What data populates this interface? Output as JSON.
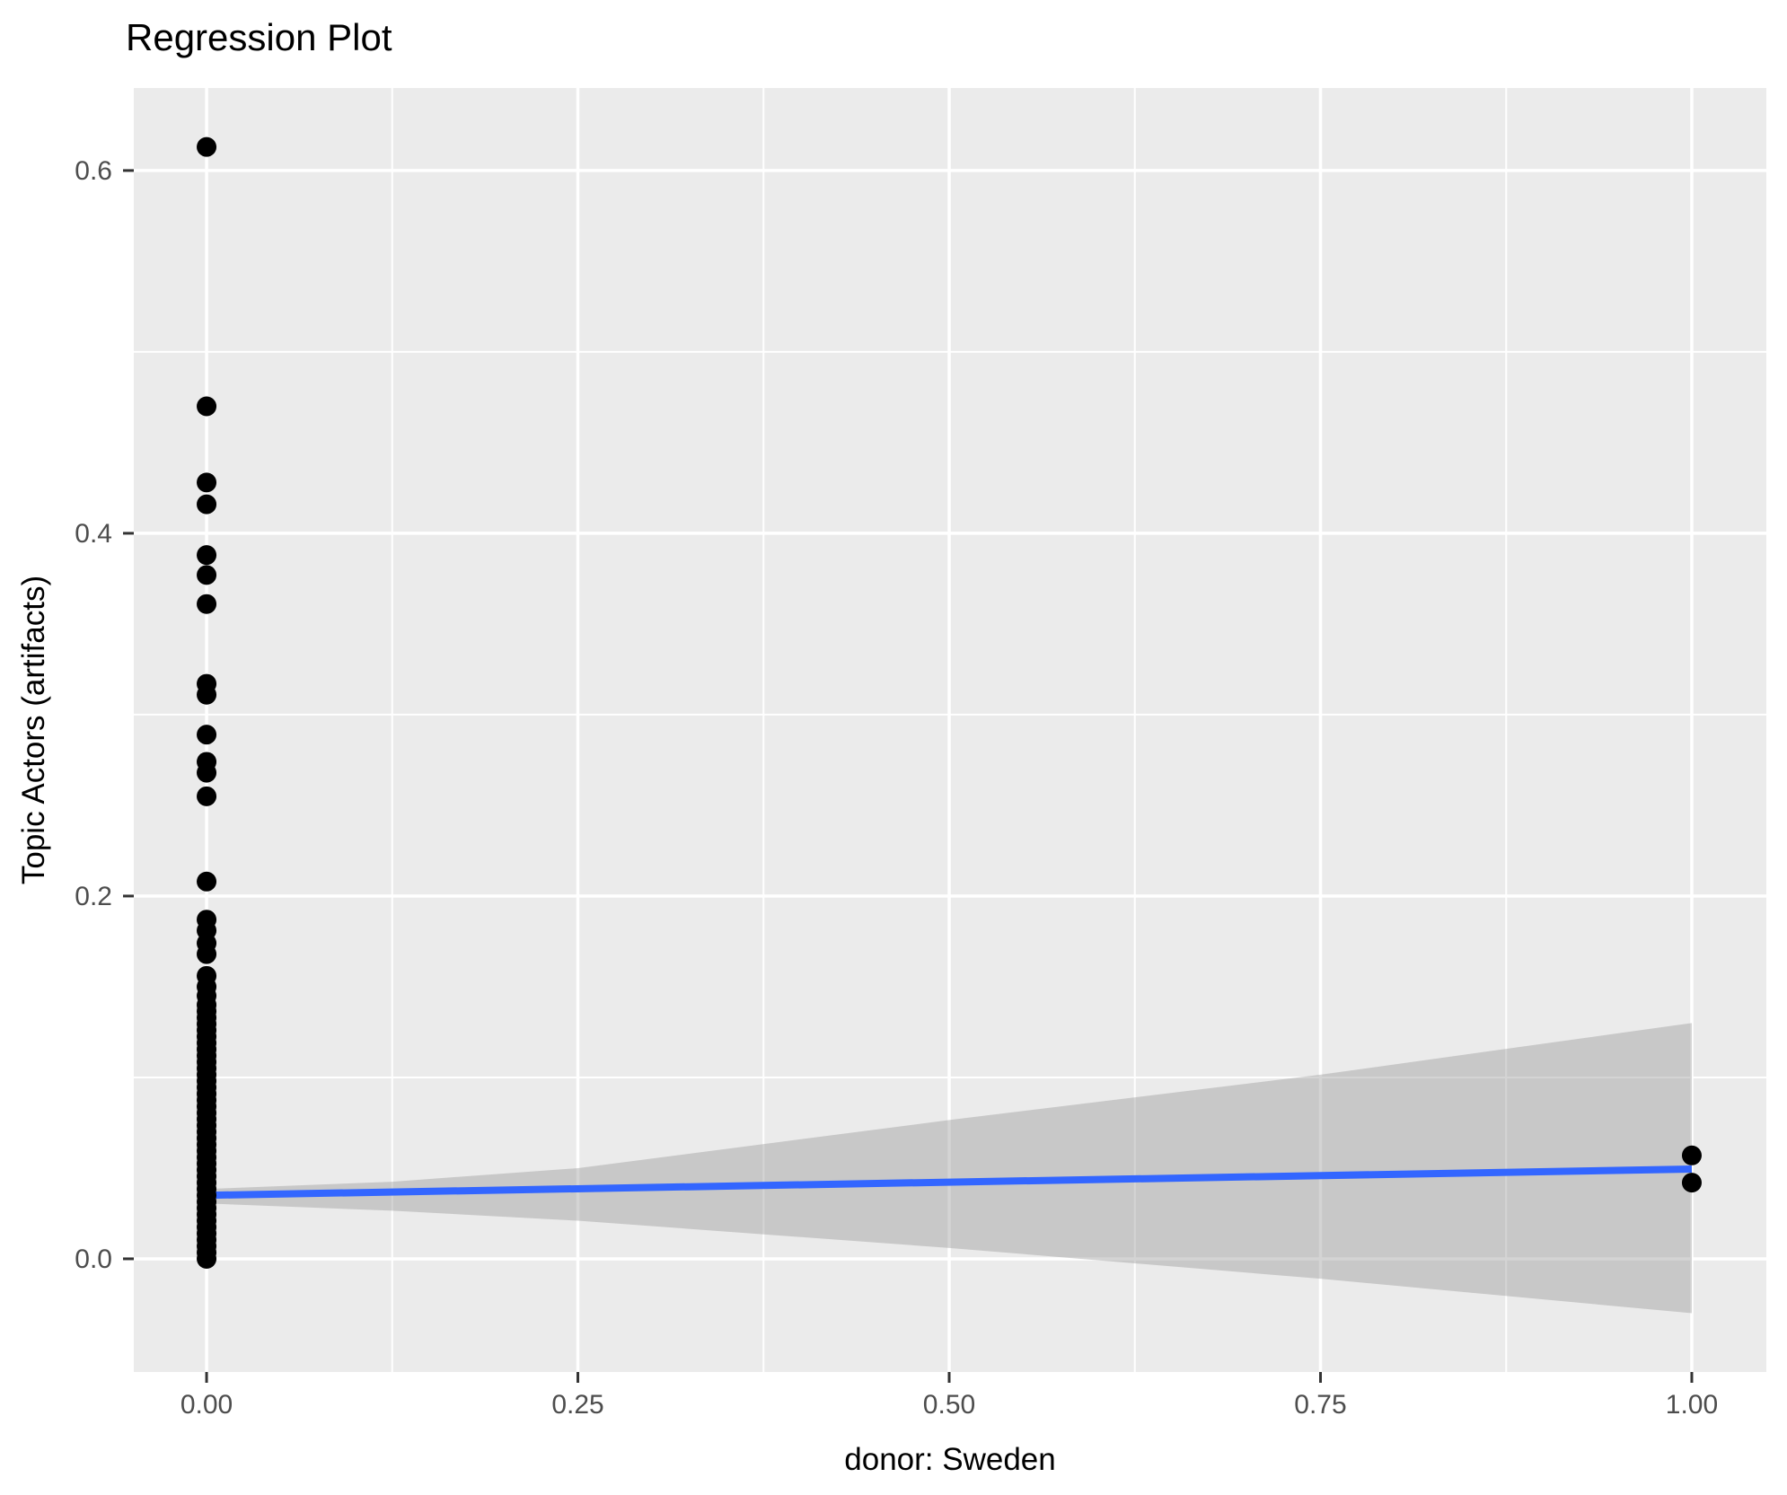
{
  "title": "Regression Plot",
  "x_axis_title": "donor: Sweden",
  "y_axis_title": "Topic Actors (artifacts)",
  "colors": {
    "background": "#FFFFFF",
    "panel_bg": "#EBEBEB",
    "grid": "#FFFFFF",
    "tick_mark": "#333333",
    "tick_label": "#4D4D4D",
    "point": "#000000",
    "regression_line": "#3366FF",
    "ribbon": "#999999",
    "title_text": "#000000"
  },
  "chart_data": {
    "type": "scatter",
    "title": "Regression Plot",
    "xlabel": "donor: Sweden",
    "ylabel": "Topic Actors (artifacts)",
    "xlim": [
      -0.049,
      1.0502
    ],
    "ylim": [
      -0.0624,
      0.6455
    ],
    "x_ticks": [
      0,
      0.25,
      0.5,
      0.75,
      1.0
    ],
    "x_tick_labels": [
      "0.00",
      "0.25",
      "0.50",
      "0.75",
      "1.00"
    ],
    "y_ticks": [
      0,
      0.2,
      0.4,
      0.6
    ],
    "y_tick_labels": [
      "0.0",
      "0.2",
      "0.4",
      "0.6"
    ],
    "x_minor_ticks": [
      0.125,
      0.375,
      0.625,
      0.875
    ],
    "y_minor_ticks": [
      0.1,
      0.3,
      0.5
    ],
    "grid": true,
    "legend": "none",
    "series": [
      {
        "name": "observations",
        "type": "scatter",
        "color": "#000000",
        "points": [
          [
            0,
            0.613
          ],
          [
            0,
            0.47
          ],
          [
            0,
            0.428
          ],
          [
            0,
            0.416
          ],
          [
            0,
            0.388
          ],
          [
            0,
            0.377
          ],
          [
            0,
            0.361
          ],
          [
            0,
            0.317
          ],
          [
            0,
            0.311
          ],
          [
            0,
            0.289
          ],
          [
            0,
            0.274
          ],
          [
            0,
            0.268
          ],
          [
            0,
            0.255
          ],
          [
            0,
            0.208
          ],
          [
            0,
            0.187
          ],
          [
            0,
            0.181
          ],
          [
            0,
            0.174
          ],
          [
            0,
            0.168
          ],
          [
            0,
            0.156
          ],
          [
            0,
            0.15
          ],
          [
            0,
            0.145
          ],
          [
            0,
            0.14
          ],
          [
            0,
            0.1365
          ],
          [
            0,
            0.133
          ],
          [
            0,
            0.1295
          ],
          [
            0,
            0.126
          ],
          [
            0,
            0.1225
          ],
          [
            0,
            0.119
          ],
          [
            0,
            0.1155
          ],
          [
            0,
            0.112
          ],
          [
            0,
            0.1085
          ],
          [
            0,
            0.105
          ],
          [
            0,
            0.1015
          ],
          [
            0,
            0.098
          ],
          [
            0,
            0.0945
          ],
          [
            0,
            0.091
          ],
          [
            0,
            0.0875
          ],
          [
            0,
            0.084
          ],
          [
            0,
            0.0805
          ],
          [
            0,
            0.077
          ],
          [
            0,
            0.0735
          ],
          [
            0,
            0.07
          ],
          [
            0,
            0.0665
          ],
          [
            0,
            0.063
          ],
          [
            0,
            0.0595
          ],
          [
            0,
            0.056
          ],
          [
            0,
            0.0525
          ],
          [
            0,
            0.049
          ],
          [
            0,
            0.0455
          ],
          [
            0,
            0.042
          ],
          [
            0,
            0.0385
          ],
          [
            0,
            0.035
          ],
          [
            0,
            0.0315
          ],
          [
            0,
            0.028
          ],
          [
            0,
            0.0245
          ],
          [
            0,
            0.021
          ],
          [
            0,
            0.0175
          ],
          [
            0,
            0.014
          ],
          [
            0,
            0.0105
          ],
          [
            0,
            0.007
          ],
          [
            0,
            0.0035
          ],
          [
            0,
            0.0
          ],
          [
            1,
            0.057
          ],
          [
            1,
            0.042
          ]
        ]
      },
      {
        "name": "regression-line",
        "type": "line",
        "color": "#3366FF",
        "points": [
          [
            0,
            0.035
          ],
          [
            1,
            0.0495
          ]
        ]
      },
      {
        "name": "confidence-band",
        "type": "area",
        "color": "#999999",
        "opacity": 0.42,
        "upper": [
          [
            0,
            0.0385
          ],
          [
            0.125,
            0.0425
          ],
          [
            0.25,
            0.05
          ],
          [
            0.5,
            0.0765
          ],
          [
            0.75,
            0.1015
          ],
          [
            1,
            0.13
          ]
        ],
        "lower": [
          [
            0,
            0.0305
          ],
          [
            0.125,
            0.0265
          ],
          [
            0.25,
            0.021
          ],
          [
            0.5,
            0.006
          ],
          [
            0.75,
            -0.011
          ],
          [
            1,
            -0.03
          ]
        ]
      }
    ]
  }
}
